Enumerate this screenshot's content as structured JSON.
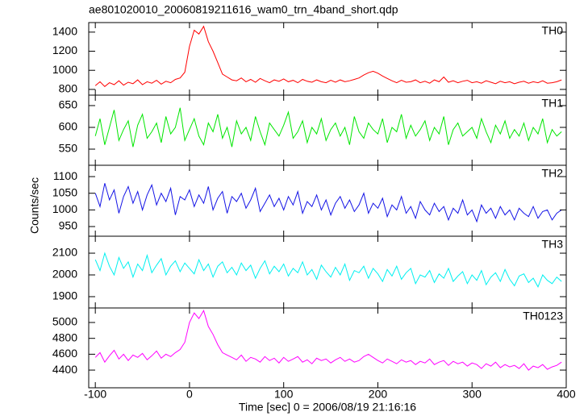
{
  "chart_data": {
    "type": "line",
    "title": "ae801020010_20060819211616_wam0_trn_4band_short.qdp",
    "xlabel": "Time [sec] 0 = 2006/08/19 21:16:16",
    "ylabel": "Counts/sec",
    "xlim": [
      -107,
      400
    ],
    "xticks": [
      -100,
      0,
      100,
      200,
      300,
      400
    ],
    "x": [
      -100,
      -95,
      -90,
      -85,
      -80,
      -75,
      -70,
      -65,
      -60,
      -55,
      -50,
      -45,
      -40,
      -35,
      -30,
      -25,
      -20,
      -15,
      -10,
      -5,
      0,
      5,
      10,
      15,
      20,
      25,
      30,
      35,
      40,
      45,
      50,
      55,
      60,
      65,
      70,
      75,
      80,
      85,
      90,
      95,
      100,
      105,
      110,
      115,
      120,
      125,
      130,
      135,
      140,
      145,
      150,
      155,
      160,
      165,
      170,
      175,
      180,
      185,
      190,
      195,
      200,
      205,
      210,
      215,
      220,
      225,
      230,
      235,
      240,
      245,
      250,
      255,
      260,
      265,
      270,
      275,
      280,
      285,
      290,
      295,
      300,
      305,
      310,
      315,
      320,
      325,
      330,
      335,
      340,
      345,
      350,
      355,
      360,
      365,
      370,
      375,
      380,
      385,
      390,
      395
    ],
    "panels": [
      {
        "name": "TH0",
        "color": "#ff0000",
        "ylim": [
          740,
          1500
        ],
        "yticks": [
          800,
          1000,
          1200,
          1400
        ],
        "values": [
          840,
          880,
          830,
          870,
          850,
          890,
          845,
          875,
          860,
          900,
          850,
          880,
          865,
          895,
          855,
          885,
          870,
          905,
          920,
          980,
          1250,
          1420,
          1380,
          1460,
          1300,
          1200,
          1080,
          960,
          930,
          900,
          890,
          920,
          880,
          905,
          875,
          915,
          890,
          870,
          900,
          885,
          910,
          880,
          895,
          870,
          905,
          885,
          875,
          900,
          880,
          870,
          895,
          875,
          900,
          880,
          890,
          905,
          920,
          950,
          975,
          990,
          970,
          940,
          915,
          890,
          870,
          895,
          875,
          880,
          900,
          870,
          885,
          865,
          900,
          880,
          930,
          875,
          890,
          870,
          885,
          895,
          870,
          880,
          865,
          890,
          875,
          860,
          885,
          870,
          880,
          860,
          875,
          885,
          865,
          880,
          870,
          890,
          865,
          870,
          880,
          900
        ]
      },
      {
        "name": "TH1",
        "color": "#00e600",
        "ylim": [
          513,
          674
        ],
        "yticks": [
          550,
          600,
          650
        ],
        "values": [
          580,
          620,
          560,
          600,
          640,
          570,
          595,
          615,
          555,
          605,
          630,
          575,
          590,
          610,
          565,
          625,
          585,
          600,
          645,
          570,
          595,
          620,
          580,
          560,
          610,
          590,
          630,
          575,
          600,
          555,
          615,
          585,
          600,
          570,
          625,
          590,
          560,
          610,
          595,
          580,
          605,
          635,
          575,
          590,
          615,
          565,
          600,
          585,
          620,
          570,
          595,
          610,
          580,
          600,
          560,
          625,
          590,
          575,
          610,
          595,
          585,
          620,
          565,
          600,
          590,
          630,
          575,
          605,
          580,
          595,
          615,
          570,
          600,
          585,
          625,
          560,
          595,
          610,
          580,
          590,
          600,
          575,
          620,
          590,
          565,
          605,
          585,
          615,
          575,
          595,
          580,
          610,
          570,
          600,
          585,
          620,
          565,
          595,
          580,
          590
        ]
      },
      {
        "name": "TH2",
        "color": "#1414e6",
        "ylim": [
          921,
          1134
        ],
        "yticks": [
          950,
          1000,
          1050,
          1100
        ],
        "values": [
          1050,
          1010,
          1080,
          1030,
          1060,
          990,
          1040,
          1070,
          1020,
          1055,
          1000,
          1045,
          1075,
          1015,
          1050,
          1025,
          1065,
          985,
          1040,
          1030,
          1060,
          1010,
          1045,
          1020,
          1070,
          1000,
          1035,
          1055,
          990,
          1040,
          1025,
          1050,
          1005,
          1030,
          1065,
          995,
          1020,
          1045,
          1010,
          1035,
          1000,
          1040,
          1015,
          1055,
          990,
          1025,
          1010,
          1045,
          1000,
          1030,
          985,
          1020,
          1040,
          1005,
          1030,
          995,
          1015,
          1050,
          990,
          1020,
          1005,
          1035,
          980,
          1015,
          1000,
          1040,
          990,
          1010,
          975,
          1025,
          1000,
          985,
          1020,
          995,
          1010,
          970,
          1005,
          990,
          1030,
          985,
          1000,
          965,
          1015,
          990,
          1005,
          975,
          1010,
          985,
          1000,
          970,
          1005,
          990,
          980,
          1010,
          975,
          995,
          1000,
          970,
          990,
          1000
        ]
      },
      {
        "name": "TH3",
        "color": "#00f0f0",
        "ylim": [
          1848,
          2178
        ],
        "yticks": [
          1900,
          2000,
          2100
        ],
        "values": [
          2070,
          2020,
          2100,
          2040,
          2000,
          2080,
          2030,
          2060,
          1990,
          2050,
          2020,
          2090,
          2010,
          2045,
          2075,
          2000,
          2040,
          2065,
          2015,
          2055,
          2030,
          2005,
          2070,
          2020,
          2050,
          1990,
          2040,
          2060,
          2010,
          2035,
          2000,
          2055,
          2020,
          2045,
          1985,
          2030,
          2065,
          2005,
          2040,
          2015,
          2050,
          1995,
          2030,
          2010,
          2060,
          2000,
          2025,
          1980,
          2045,
          2015,
          1990,
          2035,
          2000,
          2050,
          1975,
          2020,
          2010,
          2040,
          1985,
          2030,
          2005,
          1970,
          2025,
          1995,
          2040,
          1980,
          2010,
          2030,
          1960,
          2000,
          1990,
          2020,
          1965,
          2005,
          1985,
          2030,
          1970,
          1995,
          2015,
          1960,
          2000,
          1975,
          2020,
          1955,
          1990,
          2010,
          1970,
          2025,
          1980,
          1950,
          1995,
          2005,
          1965,
          1985,
          1945,
          2000,
          1975,
          1960,
          1990,
          1970
        ]
      },
      {
        "name": "TH0123",
        "color": "#ff00ff",
        "ylim": [
          4177,
          5183
        ],
        "yticks": [
          4400,
          4600,
          4800,
          5000
        ],
        "values": [
          4560,
          4620,
          4500,
          4580,
          4650,
          4540,
          4600,
          4520,
          4590,
          4560,
          4610,
          4530,
          4580,
          4640,
          4550,
          4600,
          4570,
          4620,
          4660,
          4750,
          5000,
          5120,
          5050,
          5150,
          4950,
          4850,
          4720,
          4620,
          4590,
          4560,
          4530,
          4590,
          4510,
          4560,
          4540,
          4500,
          4570,
          4520,
          4550,
          4490,
          4560,
          4510,
          4540,
          4570,
          4500,
          4530,
          4480,
          4550,
          4520,
          4540,
          4490,
          4530,
          4560,
          4510,
          4540,
          4500,
          4520,
          4570,
          4600,
          4560,
          4520,
          4490,
          4540,
          4510,
          4480,
          4530,
          4500,
          4520,
          4470,
          4510,
          4490,
          4540,
          4470,
          4500,
          4520,
          4460,
          4510,
          4480,
          4500,
          4450,
          4490,
          4470,
          4420,
          4480,
          4450,
          4500,
          4430,
          4470,
          4440,
          4460,
          4420,
          4480,
          4400,
          4450,
          4430,
          4470,
          4410,
          4440,
          4460,
          4500
        ]
      }
    ]
  }
}
